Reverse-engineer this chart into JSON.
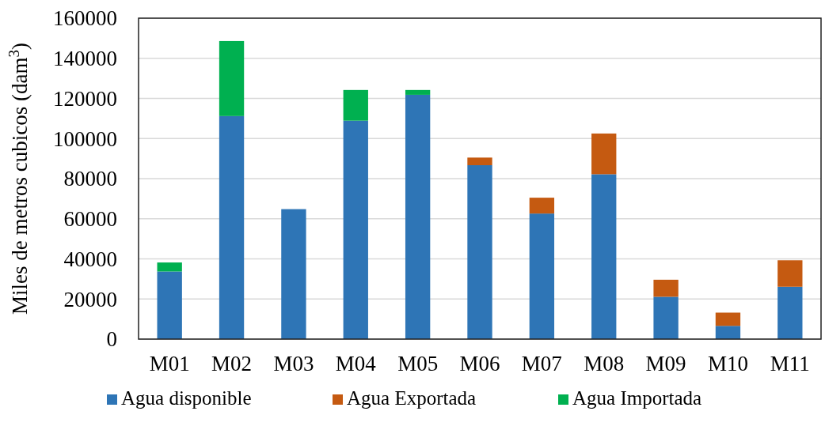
{
  "chart_data": {
    "type": "bar",
    "stacked": true,
    "ylabel": "Miles de metros cubicos (dam$^{3}$)",
    "categories": [
      "M01",
      "M02",
      "M03",
      "M04",
      "M05",
      "M06",
      "M07",
      "M08",
      "M09",
      "M10",
      "M11"
    ],
    "series": [
      {
        "name": "Agua disponible",
        "color": "#2e75b6",
        "values": [
          33700,
          111200,
          64800,
          108900,
          121800,
          86700,
          62600,
          82200,
          21100,
          6600,
          26100
        ]
      },
      {
        "name": "Agua Exportada",
        "color": "#c55a11",
        "values": [
          0,
          0,
          0,
          0,
          0,
          3800,
          7900,
          20300,
          8500,
          6600,
          13200
        ]
      },
      {
        "name": "Agua Importada",
        "color": "#00b050",
        "values": [
          4500,
          37400,
          0,
          15300,
          2400,
          0,
          0,
          0,
          0,
          0,
          0
        ]
      }
    ],
    "ylim": [
      0,
      160000
    ],
    "yticks": [
      0,
      20000,
      40000,
      60000,
      80000,
      100000,
      120000,
      140000,
      160000
    ],
    "grid": "y",
    "legend": "bottom"
  }
}
